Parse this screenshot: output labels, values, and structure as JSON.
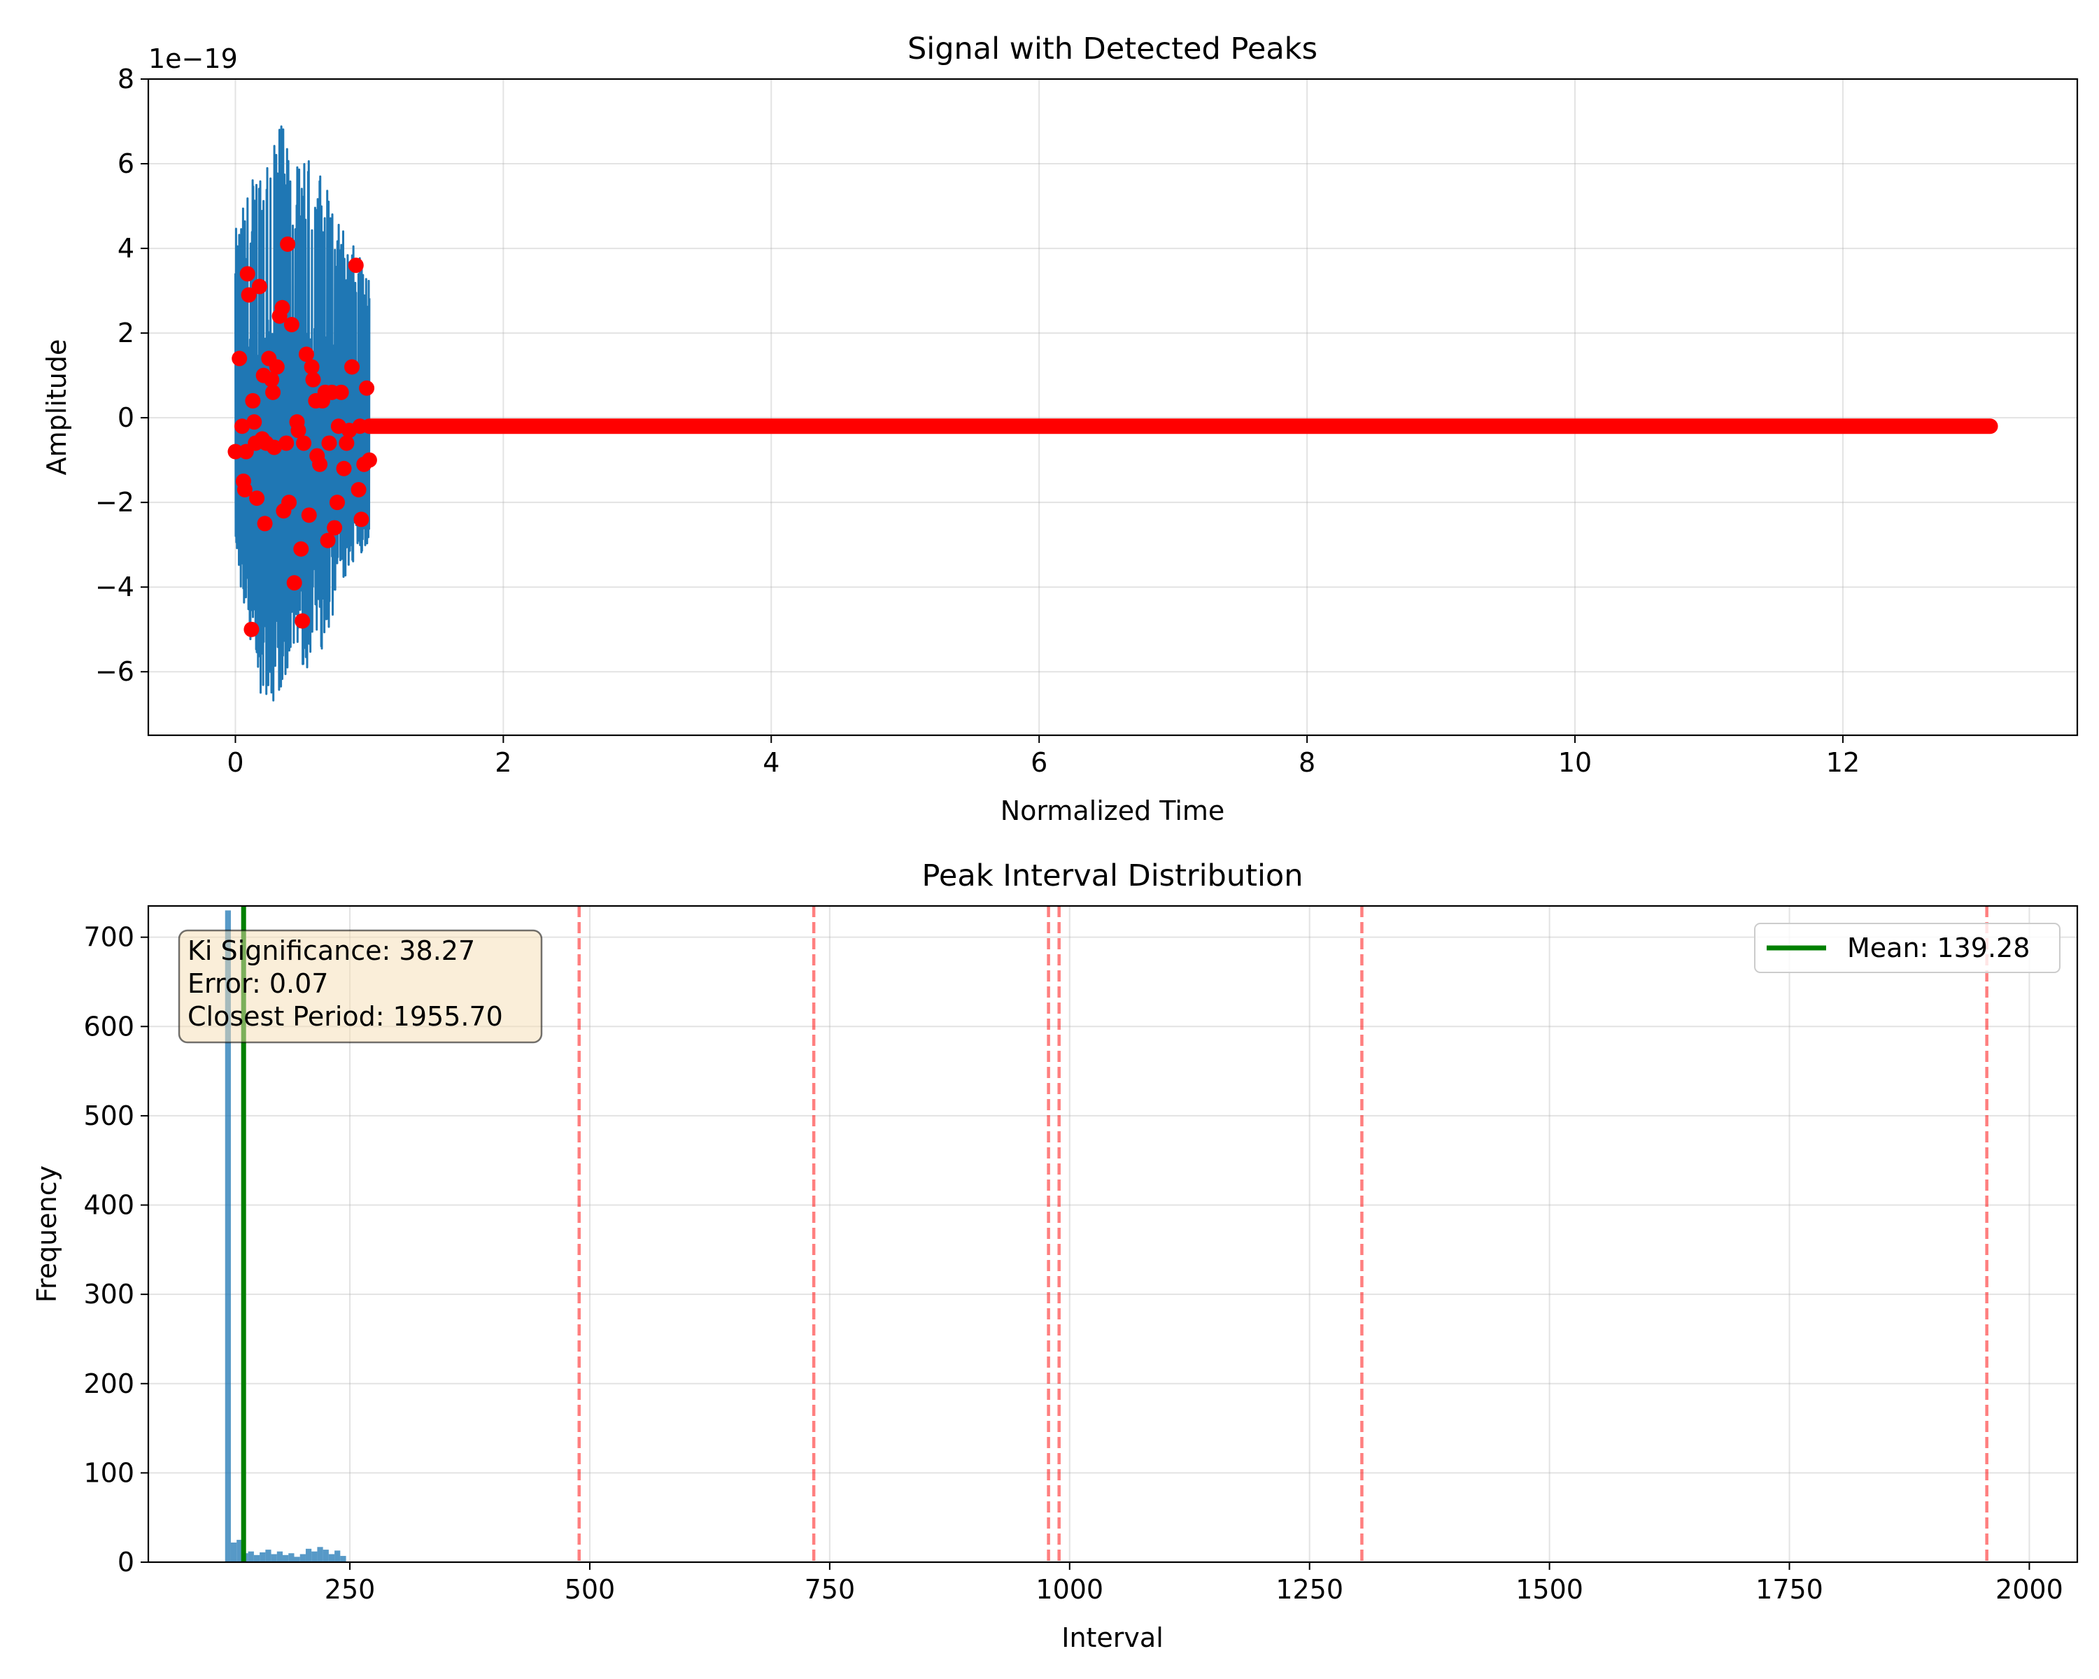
{
  "chart_data": [
    {
      "type": "line",
      "title": "Signal with Detected Peaks",
      "xlabel": "Normalized Time",
      "ylabel": "Amplitude",
      "y_offset_label": "1e−19",
      "xlim": [
        -0.65,
        13.75
      ],
      "ylim": [
        -7.5,
        8
      ],
      "xticks": [
        0,
        2,
        4,
        6,
        8,
        10,
        12
      ],
      "yticks": [
        -6,
        -4,
        -2,
        0,
        2,
        4,
        6,
        8
      ],
      "ytick_labels": [
        "−6",
        "−4",
        "−2",
        "0",
        "2",
        "4",
        "6",
        "8"
      ],
      "grid": true,
      "series": [
        {
          "kind": "signal",
          "color": "#1f77b4",
          "x_range": [
            0,
            1
          ],
          "envelope_upper": [
            4.2,
            6.1,
            7.3,
            5.9,
            6.2,
            4.4,
            3.3
          ],
          "envelope_lower": [
            -3.3,
            -6.4,
            -6.8,
            -5.8,
            -6.0,
            -4.0,
            -2.9
          ],
          "note_x": [
            0,
            0.15,
            0.3,
            0.45,
            0.6,
            0.8,
            1.0
          ]
        },
        {
          "kind": "peaks",
          "color": "#ff0000",
          "points": [
            [
              0.0,
              -0.8
            ],
            [
              0.03,
              1.4
            ],
            [
              0.05,
              -0.2
            ],
            [
              0.06,
              -1.5
            ],
            [
              0.07,
              -1.7
            ],
            [
              0.08,
              -0.8
            ],
            [
              0.09,
              3.4
            ],
            [
              0.1,
              2.9
            ],
            [
              0.12,
              -5.0
            ],
            [
              0.13,
              0.4
            ],
            [
              0.14,
              -0.1
            ],
            [
              0.15,
              -0.6
            ],
            [
              0.16,
              -1.9
            ],
            [
              0.18,
              3.1
            ],
            [
              0.2,
              -0.5
            ],
            [
              0.21,
              1.0
            ],
            [
              0.22,
              -2.5
            ],
            [
              0.23,
              -0.6
            ],
            [
              0.25,
              1.4
            ],
            [
              0.27,
              0.9
            ],
            [
              0.28,
              0.6
            ],
            [
              0.29,
              -0.7
            ],
            [
              0.31,
              1.2
            ],
            [
              0.33,
              2.4
            ],
            [
              0.35,
              2.6
            ],
            [
              0.36,
              -2.2
            ],
            [
              0.38,
              -0.6
            ],
            [
              0.39,
              4.1
            ],
            [
              0.4,
              -2.0
            ],
            [
              0.42,
              2.2
            ],
            [
              0.44,
              -3.9
            ],
            [
              0.46,
              -0.1
            ],
            [
              0.47,
              -0.3
            ],
            [
              0.49,
              -3.1
            ],
            [
              0.5,
              -4.8
            ],
            [
              0.51,
              -0.6
            ],
            [
              0.53,
              1.5
            ],
            [
              0.55,
              -2.3
            ],
            [
              0.57,
              1.2
            ],
            [
              0.58,
              0.9
            ],
            [
              0.6,
              0.4
            ],
            [
              0.61,
              -0.9
            ],
            [
              0.63,
              -1.1
            ],
            [
              0.65,
              0.4
            ],
            [
              0.67,
              0.6
            ],
            [
              0.69,
              -2.9
            ],
            [
              0.7,
              -0.6
            ],
            [
              0.72,
              0.6
            ],
            [
              0.74,
              -2.6
            ],
            [
              0.76,
              -2.0
            ],
            [
              0.77,
              -0.2
            ],
            [
              0.79,
              0.6
            ],
            [
              0.81,
              -1.2
            ],
            [
              0.83,
              -0.6
            ],
            [
              0.85,
              -0.3
            ],
            [
              0.87,
              1.2
            ],
            [
              0.9,
              3.6
            ],
            [
              0.92,
              -1.7
            ],
            [
              0.93,
              -0.2
            ],
            [
              0.94,
              -2.4
            ],
            [
              0.96,
              -1.1
            ],
            [
              0.98,
              0.7
            ],
            [
              1.0,
              -1.0
            ]
          ],
          "flat_peak_level": -0.2,
          "flat_peak_x_range": [
            1.0,
            13.1
          ]
        }
      ]
    },
    {
      "type": "bar",
      "title": "Peak Interval Distribution",
      "xlabel": "Interval",
      "ylabel": "Frequency",
      "xlim": [
        40,
        2050
      ],
      "ylim": [
        0,
        735
      ],
      "xticks": [
        250,
        500,
        750,
        1000,
        1250,
        1500,
        1750,
        2000
      ],
      "yticks": [
        0,
        100,
        200,
        300,
        400,
        500,
        600,
        700
      ],
      "grid": true,
      "histogram": {
        "color": "#1f77b4",
        "bins": [
          [
            120,
            126,
            730
          ],
          [
            126,
            132,
            22
          ],
          [
            132,
            138,
            25
          ],
          [
            138,
            144,
            10
          ],
          [
            144,
            150,
            12
          ],
          [
            150,
            156,
            8
          ],
          [
            156,
            162,
            11
          ],
          [
            162,
            168,
            14
          ],
          [
            168,
            174,
            9
          ],
          [
            174,
            180,
            12
          ],
          [
            180,
            186,
            8
          ],
          [
            186,
            192,
            10
          ],
          [
            192,
            198,
            6
          ],
          [
            198,
            204,
            9
          ],
          [
            204,
            210,
            15
          ],
          [
            210,
            216,
            12
          ],
          [
            216,
            222,
            17
          ],
          [
            222,
            228,
            14
          ],
          [
            228,
            234,
            9
          ],
          [
            234,
            240,
            13
          ],
          [
            240,
            246,
            7
          ]
        ]
      },
      "mean_line": {
        "value": 139.28,
        "color": "#008000",
        "legend_label": "Mean: 139.28"
      },
      "reference_lines": {
        "color": "#ff0000",
        "values": [
          488.9,
          733.4,
          978.0,
          989.0,
          1304.5,
          1955.7
        ]
      },
      "annotation": [
        "Ki Significance: 38.27",
        "Error: 0.07",
        "Closest Period: 1955.70"
      ],
      "legend_position": "upper right"
    }
  ]
}
